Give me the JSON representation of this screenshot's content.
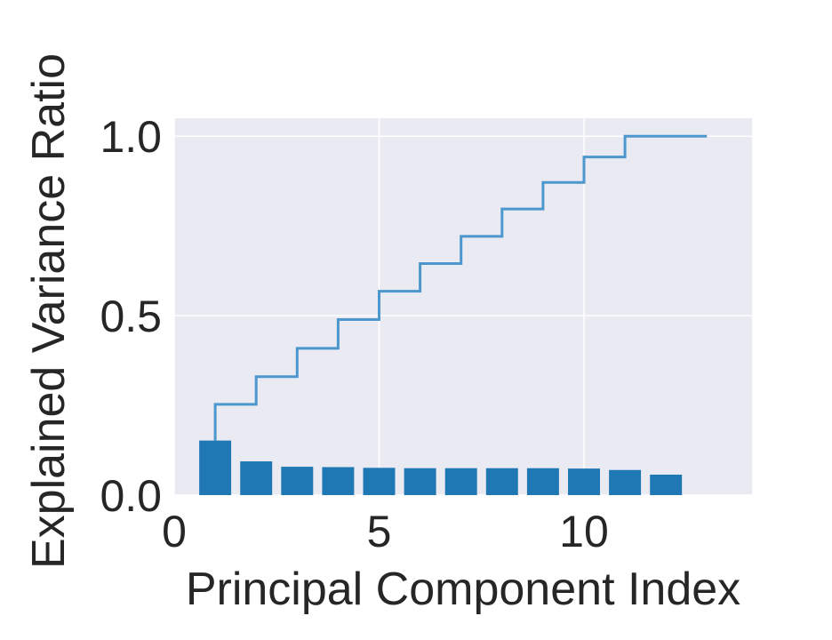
{
  "chart_data": {
    "type": "bar",
    "xlabel": "Principal Component Index",
    "ylabel": "Explained Variance Ratio",
    "xlim": [
      0,
      14.1
    ],
    "ylim": [
      0,
      1.05
    ],
    "x_ticks": [
      0,
      5,
      10
    ],
    "x_tick_labels": [
      "0",
      "5",
      "10"
    ],
    "y_ticks": [
      0.0,
      0.5,
      1.0
    ],
    "y_tick_labels": [
      "0.0",
      "0.5",
      "1.0"
    ],
    "grid": true,
    "categories": [
      1,
      2,
      3,
      4,
      5,
      6,
      7,
      8,
      9,
      10,
      11,
      12
    ],
    "series": [
      {
        "type": "bar",
        "values": [
          0.152,
          0.094,
          0.079,
          0.078,
          0.076,
          0.075,
          0.075,
          0.075,
          0.075,
          0.074,
          0.07,
          0.057
        ],
        "color": "#1f77b4"
      },
      {
        "type": "step",
        "x": [
          1,
          2,
          3,
          4,
          5,
          6,
          7,
          8,
          9,
          10,
          11,
          12,
          13
        ],
        "values": [
          0.253,
          0.33,
          0.409,
          0.489,
          0.568,
          0.645,
          0.721,
          0.797,
          0.871,
          0.942,
          1.0,
          1.0,
          1.0
        ],
        "color": "#4c97cd"
      }
    ],
    "colors": {
      "plot_background": "#eaeaf2",
      "grid": "#ffffff",
      "bar": "#1f77b4",
      "step_line": "#4c97cd",
      "text": "#262626"
    }
  }
}
